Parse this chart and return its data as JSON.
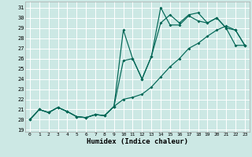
{
  "xlabel": "Humidex (Indice chaleur)",
  "bg_color": "#cce8e4",
  "line_color": "#006655",
  "grid_color": "#ffffff",
  "xlim": [
    -0.5,
    23.5
  ],
  "ylim": [
    18.8,
    31.6
  ],
  "xticks": [
    0,
    1,
    2,
    3,
    4,
    5,
    6,
    7,
    8,
    9,
    10,
    11,
    12,
    13,
    14,
    15,
    16,
    17,
    18,
    19,
    20,
    21,
    22,
    23
  ],
  "yticks": [
    19,
    20,
    21,
    22,
    23,
    24,
    25,
    26,
    27,
    28,
    29,
    30,
    31
  ],
  "line_a_x": [
    0,
    1,
    2,
    3,
    4,
    5,
    6,
    7,
    8,
    9,
    10,
    11,
    12,
    13,
    14,
    15,
    16,
    17,
    18,
    19,
    20,
    21,
    22,
    23
  ],
  "line_a_y": [
    20.0,
    21.0,
    20.7,
    21.2,
    20.8,
    20.3,
    20.2,
    20.5,
    20.4,
    21.3,
    22.0,
    22.2,
    22.5,
    23.2,
    24.2,
    25.2,
    26.0,
    27.0,
    27.5,
    28.2,
    28.8,
    29.2,
    28.8,
    27.3
  ],
  "line_b_x": [
    0,
    1,
    2,
    3,
    4,
    5,
    6,
    7,
    8,
    9,
    10,
    11,
    12,
    13,
    14,
    15,
    16,
    17,
    18,
    19,
    20,
    21,
    22,
    23
  ],
  "line_b_y": [
    20.0,
    21.0,
    20.7,
    21.2,
    20.8,
    20.3,
    20.2,
    20.5,
    20.4,
    21.3,
    28.8,
    26.0,
    24.0,
    26.2,
    31.0,
    29.3,
    29.3,
    30.2,
    29.7,
    29.5,
    30.0,
    29.0,
    27.3,
    27.3
  ],
  "line_c_x": [
    0,
    1,
    2,
    3,
    4,
    5,
    6,
    7,
    8,
    9,
    10,
    11,
    12,
    13,
    14,
    15,
    16,
    17,
    18,
    19,
    20,
    21,
    22,
    23
  ],
  "line_c_y": [
    20.0,
    21.0,
    20.7,
    21.2,
    20.8,
    20.3,
    20.2,
    20.5,
    20.4,
    21.3,
    25.8,
    26.0,
    24.0,
    26.2,
    29.5,
    30.3,
    29.5,
    30.3,
    30.5,
    29.5,
    30.0,
    29.0,
    28.8,
    27.3
  ]
}
